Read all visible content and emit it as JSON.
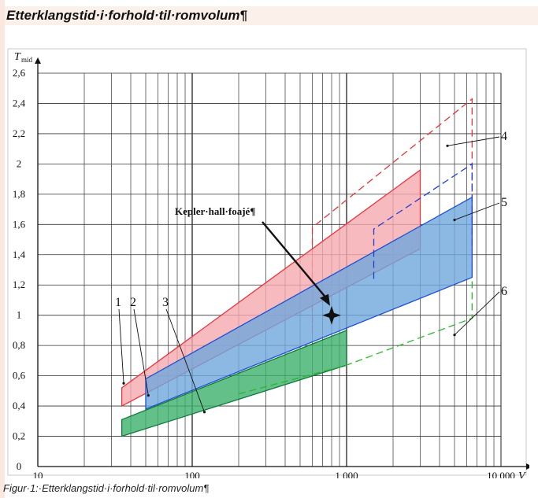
{
  "header": {
    "title": "Etterklangstid·i·forhold·til·romvolum¶"
  },
  "caption": "Figur·1:·Etterklangstid·i·forhold·til·romvolum¶",
  "chart_data": {
    "type": "area",
    "title": "",
    "xlabel": "V",
    "ylabel": "T_mid",
    "ylabel_main": "T",
    "ylabel_sub": "mid",
    "x_scale": "log",
    "xlim": [
      10,
      10000
    ],
    "ylim": [
      0,
      2.6
    ],
    "grid": true,
    "x_ticks": [
      {
        "value": 10,
        "label": "10"
      },
      {
        "value": 100,
        "label": "100"
      },
      {
        "value": 1000,
        "label": "1 000"
      },
      {
        "value": 10000,
        "label": "10 000"
      }
    ],
    "y_ticks": [
      {
        "value": 0,
        "label": "0"
      },
      {
        "value": 0.2,
        "label": "0,2"
      },
      {
        "value": 0.4,
        "label": "0,4"
      },
      {
        "value": 0.6,
        "label": "0,6"
      },
      {
        "value": 0.8,
        "label": "0,8"
      },
      {
        "value": 1.0,
        "label": "1"
      },
      {
        "value": 1.2,
        "label": "1,2"
      },
      {
        "value": 1.4,
        "label": "1,4"
      },
      {
        "value": 1.6,
        "label": "1,6"
      },
      {
        "value": 1.8,
        "label": "1,8"
      },
      {
        "value": 2.0,
        "label": "2"
      },
      {
        "value": 2.2,
        "label": "2,2"
      },
      {
        "value": 2.4,
        "label": "2,4"
      },
      {
        "value": 2.6,
        "label": "2,6"
      }
    ],
    "regions": [
      {
        "id": "4",
        "style": "dashed",
        "color": "#e8343c",
        "points": [
          [
            600,
            0.88
          ],
          [
            600,
            1.58
          ],
          [
            6500,
            2.43
          ],
          [
            6500,
            1.25
          ]
        ]
      },
      {
        "id": "1",
        "style": "filled",
        "color": "#e8343c",
        "fill": "#f5a9ae",
        "points": [
          [
            35,
            0.4
          ],
          [
            35,
            0.52
          ],
          [
            3000,
            1.96
          ],
          [
            3000,
            1.44
          ]
        ]
      },
      {
        "id": "2",
        "style": "filled",
        "color": "#1f4fd1",
        "fill": "#6fa8dc",
        "points": [
          [
            50,
            0.38
          ],
          [
            50,
            0.58
          ],
          [
            6500,
            1.78
          ],
          [
            6500,
            1.25
          ]
        ]
      },
      {
        "id": "3",
        "style": "filled",
        "color": "#0c7a3a",
        "fill": "#3cb06a",
        "points": [
          [
            35,
            0.2
          ],
          [
            35,
            0.31
          ],
          [
            1000,
            0.9
          ],
          [
            1000,
            0.67
          ]
        ]
      },
      {
        "id": "5",
        "style": "dashed",
        "color": "#1f3fd1",
        "points": [
          [
            1500,
            1.24
          ],
          [
            1500,
            1.57
          ],
          [
            6500,
            2.0
          ],
          [
            6500,
            1.43
          ]
        ]
      },
      {
        "id": "6",
        "style": "dashed",
        "color": "#2fb32f",
        "points": [
          [
            200,
            0.48
          ],
          [
            1000,
            0.67
          ],
          [
            6500,
            0.98
          ],
          [
            6500,
            1.25
          ]
        ]
      }
    ],
    "callouts": [
      {
        "label": "1",
        "anchor": [
          36,
          0.55
        ]
      },
      {
        "label": "2",
        "anchor": [
          52,
          0.47
        ]
      },
      {
        "label": "3",
        "anchor": [
          120,
          0.36
        ]
      },
      {
        "label": "4",
        "anchor": [
          4500,
          2.12
        ]
      },
      {
        "label": "5",
        "anchor": [
          5000,
          1.63
        ]
      },
      {
        "label": "6",
        "anchor": [
          5000,
          0.87
        ]
      }
    ],
    "annotation": {
      "text": "Kepler·hall·foajé¶",
      "point": [
        800,
        1.0
      ]
    }
  }
}
